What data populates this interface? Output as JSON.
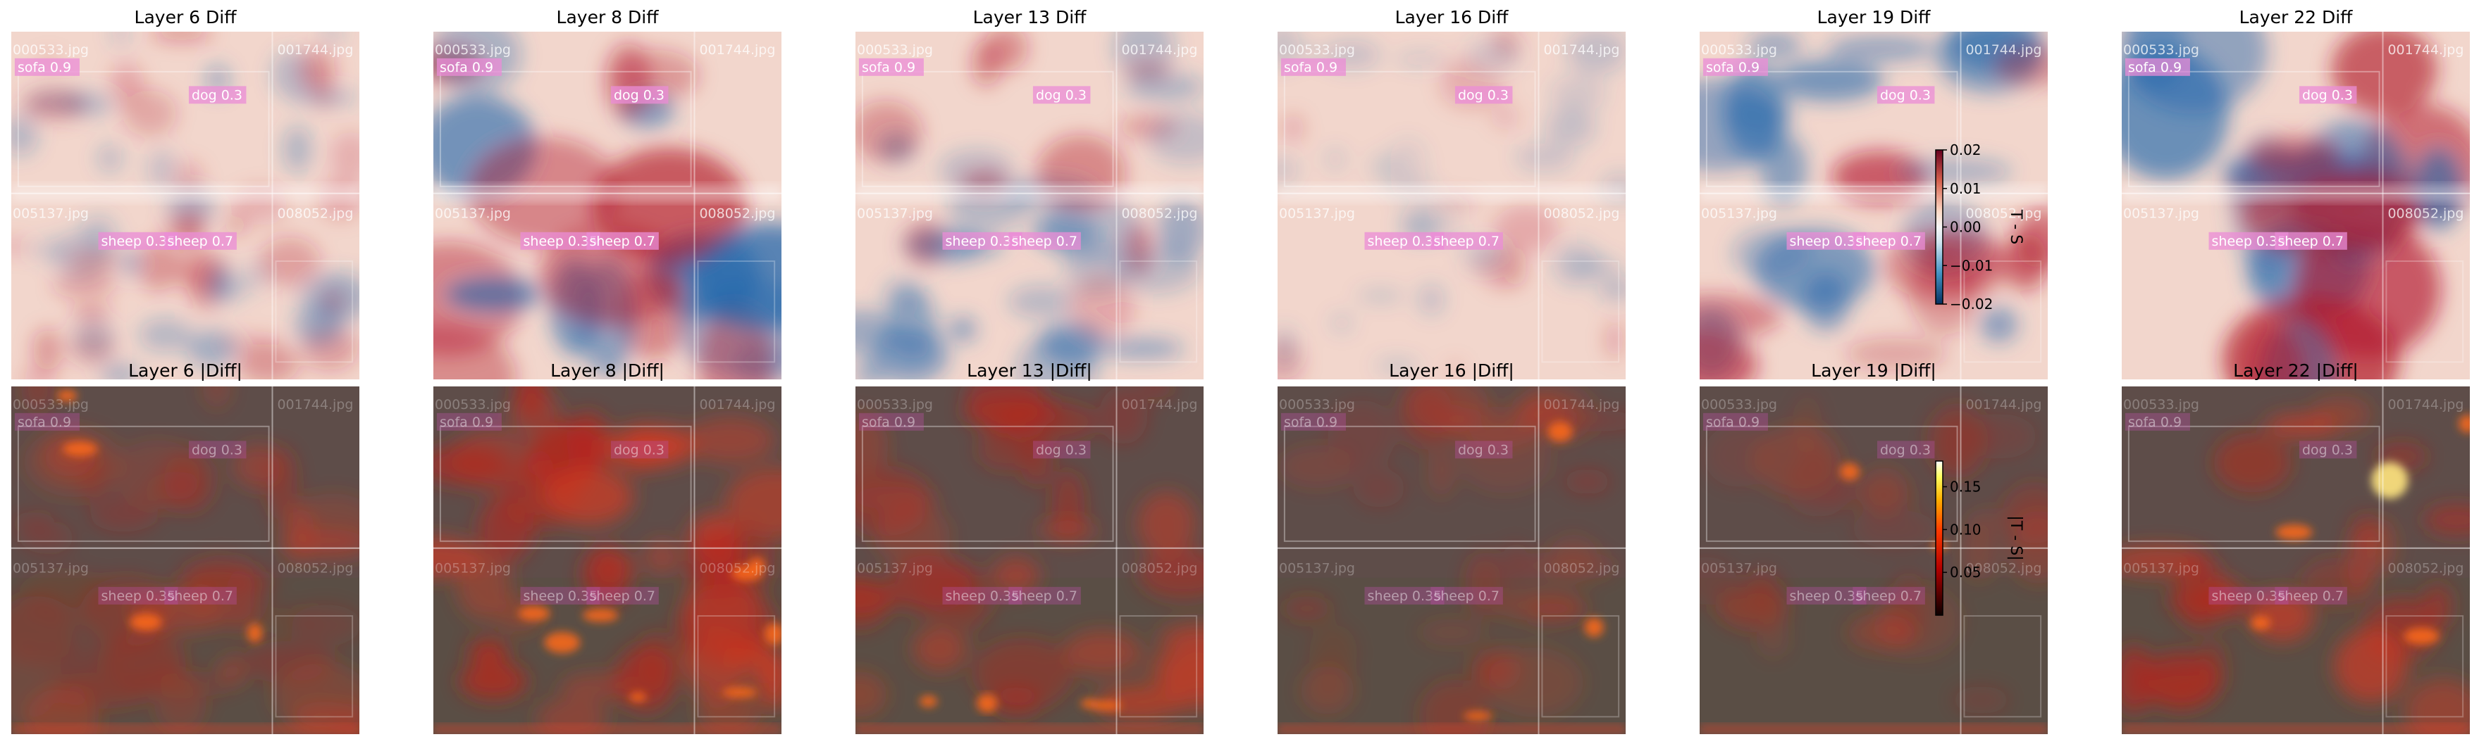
{
  "figure": {
    "rows": [
      {
        "kind": "diff",
        "titles": [
          "Layer 6 Diff",
          "Layer 8 Diff",
          "Layer 13 Diff",
          "Layer 16 Diff",
          "Layer 19 Diff",
          "Layer 22 Diff"
        ],
        "colormap": "RdBu_r",
        "colorbar": {
          "label": "T - S",
          "range": [
            -0.02,
            0.02
          ],
          "ticks": [
            0.02,
            0.01,
            0.0,
            -0.01,
            -0.02
          ],
          "tick_labels": [
            "0.02",
            "0.01",
            "0.00",
            "−0.01",
            "−0.02"
          ]
        }
      },
      {
        "kind": "absdiff",
        "titles": [
          "Layer 6 |Diff|",
          "Layer 8 |Diff|",
          "Layer 13 |Diff|",
          "Layer 16 |Diff|",
          "Layer 19 |Diff|",
          "Layer 22 |Diff|"
        ],
        "colormap": "hot",
        "colorbar": {
          "label": "|T - S|",
          "range": [
            0.0,
            0.18
          ],
          "ticks": [
            0.15,
            0.1,
            0.05
          ],
          "tick_labels": [
            "0.15",
            "0.10",
            "0.05"
          ]
        }
      }
    ],
    "mosaic_labels": {
      "files": [
        "000533.jpg",
        "001744.jpg",
        "005137.jpg",
        "008052.jpg"
      ],
      "detections": [
        "sofa 0.9",
        "dog 0.3",
        "sheep 0.35",
        "sheep 0.7"
      ]
    },
    "colors": {
      "diff_pos": "#b2182b",
      "diff_neg": "#2166ac",
      "diff_mid": "#f7f7f7",
      "hot_low": "#7a1d14",
      "hot_high": "#ffffff",
      "hot_mid": "#ff6a1a"
    }
  },
  "chart_data": {
    "type": "heatmap",
    "panels": [
      {
        "row": 1,
        "layer": 6,
        "title": "Layer 6 Diff",
        "quantity": "T - S"
      },
      {
        "row": 1,
        "layer": 8,
        "title": "Layer 8 Diff",
        "quantity": "T - S"
      },
      {
        "row": 1,
        "layer": 13,
        "title": "Layer 13 Diff",
        "quantity": "T - S"
      },
      {
        "row": 1,
        "layer": 16,
        "title": "Layer 16 Diff",
        "quantity": "T - S"
      },
      {
        "row": 1,
        "layer": 19,
        "title": "Layer 19 Diff",
        "quantity": "T - S"
      },
      {
        "row": 1,
        "layer": 22,
        "title": "Layer 22 Diff",
        "quantity": "T - S"
      },
      {
        "row": 2,
        "layer": 6,
        "title": "Layer 6 |Diff|",
        "quantity": "|T - S|"
      },
      {
        "row": 2,
        "layer": 8,
        "title": "Layer 8 |Diff|",
        "quantity": "|T - S|"
      },
      {
        "row": 2,
        "layer": 13,
        "title": "Layer 13 |Diff|",
        "quantity": "|T - S|"
      },
      {
        "row": 2,
        "layer": 16,
        "title": "Layer 16 |Diff|",
        "quantity": "|T - S|"
      },
      {
        "row": 2,
        "layer": 19,
        "title": "Layer 19 |Diff|",
        "quantity": "|T - S|"
      },
      {
        "row": 2,
        "layer": 22,
        "title": "Layer 22 |Diff|",
        "quantity": "|T - S|"
      }
    ],
    "colorbars": [
      {
        "label": "T - S",
        "range": [
          -0.02,
          0.02
        ],
        "ticks": [
          -0.02,
          -0.01,
          0.0,
          0.01,
          0.02
        ]
      },
      {
        "label": "|T - S|",
        "range": [
          0.0,
          0.18
        ],
        "ticks": [
          0.05,
          0.1,
          0.15
        ]
      }
    ]
  }
}
